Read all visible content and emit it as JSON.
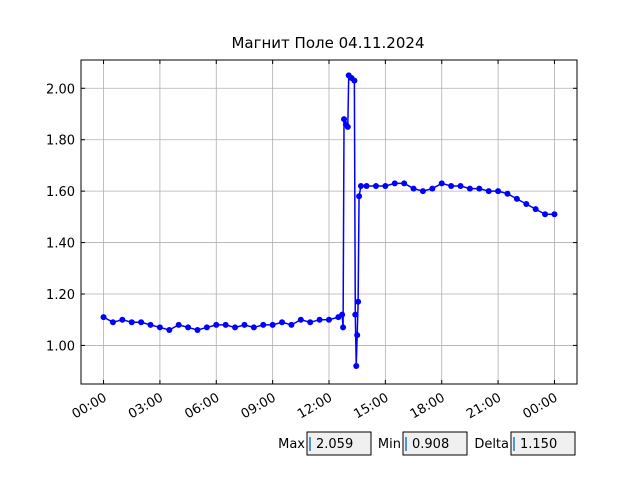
{
  "chart_data": {
    "type": "line",
    "title": "Магнит Поле 04.11.2024",
    "x": [
      0.0,
      0.5,
      1.0,
      1.5,
      2.0,
      2.5,
      3.0,
      3.5,
      4.0,
      4.5,
      5.0,
      5.5,
      6.0,
      6.5,
      7.0,
      7.5,
      8.0,
      8.5,
      9.0,
      9.5,
      10.0,
      10.5,
      11.0,
      11.5,
      12.0,
      12.5,
      12.7,
      12.75,
      12.8,
      12.9,
      13.0,
      13.05,
      13.2,
      13.35,
      13.4,
      13.45,
      13.5,
      13.55,
      13.6,
      13.7,
      14.0,
      14.5,
      15.0,
      15.5,
      16.0,
      16.5,
      17.0,
      17.5,
      18.0,
      18.5,
      19.0,
      19.5,
      20.0,
      20.5,
      21.0,
      21.5,
      22.0,
      22.5,
      23.0,
      23.5,
      24.0
    ],
    "series": [
      {
        "color": "#0000ff",
        "values": [
          1.11,
          1.09,
          1.1,
          1.09,
          1.09,
          1.08,
          1.07,
          1.06,
          1.08,
          1.07,
          1.06,
          1.07,
          1.08,
          1.08,
          1.07,
          1.08,
          1.07,
          1.08,
          1.08,
          1.09,
          1.08,
          1.1,
          1.09,
          1.1,
          1.1,
          1.11,
          1.12,
          1.07,
          1.88,
          1.86,
          1.85,
          2.05,
          2.04,
          2.03,
          1.12,
          0.92,
          1.04,
          1.17,
          1.58,
          1.62,
          1.62,
          1.62,
          1.62,
          1.63,
          1.63,
          1.61,
          1.6,
          1.61,
          1.63,
          1.62,
          1.62,
          1.61,
          1.61,
          1.6,
          1.6,
          1.59,
          1.57,
          1.55,
          1.53,
          1.51,
          1.51
        ]
      }
    ],
    "xlim": [
      -1.2,
      25.2
    ],
    "xticks": [
      {
        "value": 0,
        "label": "00:00"
      },
      {
        "value": 3,
        "label": "03:00"
      },
      {
        "value": 6,
        "label": "06:00"
      },
      {
        "value": 9,
        "label": "09:00"
      },
      {
        "value": 12,
        "label": "12:00"
      },
      {
        "value": 15,
        "label": "15:00"
      },
      {
        "value": 18,
        "label": "18:00"
      },
      {
        "value": 21,
        "label": "21:00"
      },
      {
        "value": 24,
        "label": "00:00"
      }
    ],
    "ylim": [
      0.85,
      2.11
    ],
    "yticks": [
      {
        "value": 1.0,
        "label": "1.00"
      },
      {
        "value": 1.2,
        "label": "1.20"
      },
      {
        "value": 1.4,
        "label": "1.40"
      },
      {
        "value": 1.6,
        "label": "1.60"
      },
      {
        "value": 1.8,
        "label": "1.80"
      },
      {
        "value": 2.0,
        "label": "2.00"
      }
    ],
    "grid": true
  },
  "widgets": [
    {
      "label": "Max",
      "value": "2.059"
    },
    {
      "label": "Min",
      "value": "0.908"
    },
    {
      "label": "Delta",
      "value": "1.150"
    }
  ]
}
